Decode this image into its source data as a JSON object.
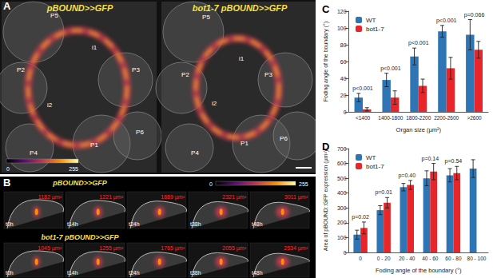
{
  "panels": {
    "A": {
      "letter": "A",
      "images": [
        {
          "title": "pBOUND>>GFP",
          "labels": [
            "P5",
            "P2",
            "i1",
            "P3",
            "i2",
            "P1",
            "P4",
            "P6"
          ]
        },
        {
          "title": "bot1-7 pBOUND>>GFP",
          "labels": [
            "P5",
            "P2",
            "i1",
            "P3",
            "i2",
            "P1",
            "P4",
            "P6"
          ]
        }
      ],
      "colorbar": {
        "range": [
          0,
          255
        ]
      }
    },
    "B": {
      "letter": "B",
      "rows": [
        {
          "title": "pBOUND>>GFP",
          "times": [
            "t0h",
            "t14h",
            "t24h",
            "t38h",
            "t48h"
          ],
          "areas": [
            "1182 µm²",
            "1221 µm²",
            "1689 µm²",
            "2321 µm²",
            "3011 µm²"
          ]
        },
        {
          "title": "bot1-7 pBOUND>>GFP",
          "times": [
            "t0h",
            "t14h",
            "t24h",
            "t38h",
            "t48h"
          ],
          "areas": [
            "1045 µm²",
            "1255 µm²",
            "1765 µm²",
            "2055 µm²",
            "2534 µm²"
          ]
        }
      ],
      "colorbar": {
        "range": [
          0,
          255
        ]
      }
    }
  },
  "chart_data": [
    {
      "type": "bar",
      "title": "C",
      "categories": [
        "<1400",
        "1400-1800",
        "1800-2200",
        "2200-2600",
        ">2600"
      ],
      "x_label": "Organ size (µm²)",
      "y_label": "Foding angle of the boundary (°)",
      "series": [
        {
          "name": "WT",
          "color": "#2E75B6",
          "values": [
            17,
            38,
            66,
            96,
            92
          ],
          "errors": [
            5,
            8,
            10,
            7,
            18
          ]
        },
        {
          "name": "bot1-7",
          "color": "#E8262A",
          "values": [
            3,
            17,
            31,
            52,
            74
          ],
          "errors": [
            2,
            8,
            8,
            13,
            10
          ]
        }
      ],
      "annotations": [
        "p<0.001",
        "p<0.001",
        "p<0.001",
        "p<0.001",
        "p=0.066"
      ],
      "ylim": [
        0,
        120
      ],
      "yticks": [
        0,
        20,
        40,
        60,
        80,
        100,
        120
      ],
      "legend": "top-left",
      "grid": false
    },
    {
      "type": "bar",
      "title": "D",
      "categories": [
        "0",
        "0 - 20",
        "20 - 40",
        "40 - 60",
        "60 - 80",
        "80 - 100"
      ],
      "x_label": "Foding angle of the boundary (°)",
      "y_label": "Area of pBOUND::GFP expression (µm²)",
      "series": [
        {
          "name": "WT",
          "color": "#2E75B6",
          "values": [
            120,
            285,
            440,
            500,
            520,
            565
          ],
          "errors": [
            30,
            30,
            25,
            50,
            45,
            60
          ]
        },
        {
          "name": "bot1-7",
          "color": "#E8262A",
          "values": [
            165,
            335,
            455,
            545,
            535,
            null
          ],
          "errors": [
            40,
            35,
            30,
            55,
            45,
            null
          ]
        }
      ],
      "annotations": [
        "p=0.02",
        "p=0.01",
        "p=0.40",
        "p=0.14",
        "p=0.54",
        null
      ],
      "ylim": [
        0,
        700
      ],
      "yticks": [
        0,
        100,
        200,
        300,
        400,
        500,
        600,
        700
      ],
      "legend": "top-left",
      "grid": false
    }
  ]
}
